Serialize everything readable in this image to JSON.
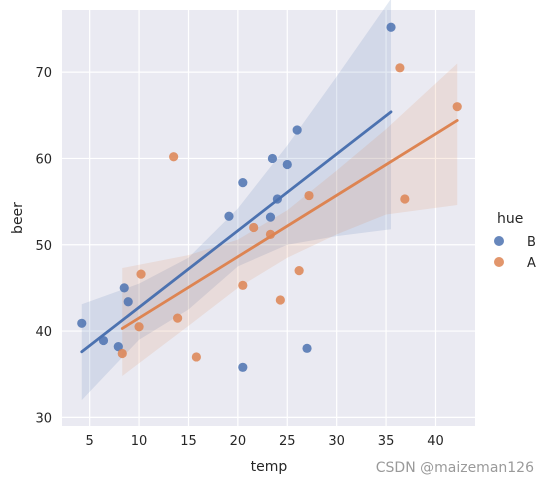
{
  "chart_data": {
    "type": "scatter",
    "xlabel": "temp",
    "ylabel": "beer",
    "xlim": [
      2.2,
      44.0
    ],
    "ylim": [
      29.0,
      77.2
    ],
    "xticks": [
      5,
      10,
      15,
      20,
      25,
      30,
      35,
      40
    ],
    "yticks": [
      30,
      40,
      50,
      60,
      70
    ],
    "grid": true,
    "legend": {
      "title": "hue",
      "placement": "right"
    },
    "series": [
      {
        "name": "B",
        "color": "#4c72b0",
        "points": [
          [
            4.2,
            40.9
          ],
          [
            6.4,
            38.9
          ],
          [
            7.9,
            38.2
          ],
          [
            8.5,
            45.0
          ],
          [
            8.9,
            43.4
          ],
          [
            19.1,
            53.3
          ],
          [
            20.5,
            57.2
          ],
          [
            20.5,
            35.8
          ],
          [
            23.3,
            53.2
          ],
          [
            23.5,
            60.0
          ],
          [
            24.0,
            55.3
          ],
          [
            25.0,
            59.3
          ],
          [
            26.0,
            63.3
          ],
          [
            27.0,
            38.0
          ],
          [
            35.5,
            75.2
          ]
        ],
        "fit": {
          "x": [
            4.2,
            35.5
          ],
          "y": [
            37.6,
            65.4
          ]
        },
        "ci_upper": [
          [
            4.2,
            43.1
          ],
          [
            10.0,
            45.5
          ],
          [
            15.0,
            48.5
          ],
          [
            20.0,
            54.2
          ],
          [
            25.0,
            61.5
          ],
          [
            30.0,
            69.5
          ],
          [
            35.5,
            78.5
          ]
        ],
        "ci_lower": [
          [
            4.2,
            32.0
          ],
          [
            10.0,
            39.0
          ],
          [
            15.0,
            42.5
          ],
          [
            20.0,
            47.5
          ],
          [
            25.0,
            50.0
          ],
          [
            30.0,
            51.0
          ],
          [
            35.5,
            51.8
          ]
        ]
      },
      {
        "name": "A",
        "color": "#dd8452",
        "points": [
          [
            8.3,
            37.4
          ],
          [
            10.0,
            40.5
          ],
          [
            10.2,
            46.6
          ],
          [
            13.5,
            60.2
          ],
          [
            13.9,
            41.5
          ],
          [
            15.8,
            37.0
          ],
          [
            20.5,
            45.3
          ],
          [
            21.6,
            52.0
          ],
          [
            23.3,
            51.2
          ],
          [
            24.3,
            43.6
          ],
          [
            26.2,
            47.0
          ],
          [
            27.2,
            55.7
          ],
          [
            36.4,
            70.5
          ],
          [
            36.9,
            55.3
          ],
          [
            42.2,
            66.0
          ]
        ],
        "fit": {
          "x": [
            8.3,
            42.2
          ],
          "y": [
            40.3,
            64.4
          ]
        },
        "ci_upper": [
          [
            8.3,
            47.3
          ],
          [
            15.0,
            48.8
          ],
          [
            20.0,
            50.6
          ],
          [
            25.0,
            54.0
          ],
          [
            30.0,
            58.6
          ],
          [
            35.0,
            63.4
          ],
          [
            42.2,
            71.0
          ]
        ],
        "ci_lower": [
          [
            8.3,
            34.8
          ],
          [
            15.0,
            40.6
          ],
          [
            20.0,
            45.0
          ],
          [
            25.0,
            48.5
          ],
          [
            30.0,
            51.2
          ],
          [
            35.0,
            53.5
          ],
          [
            42.2,
            54.6
          ]
        ]
      }
    ]
  },
  "watermark": "CSDN @maizeman126"
}
